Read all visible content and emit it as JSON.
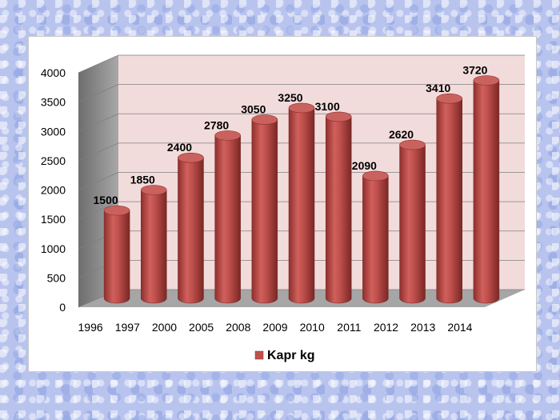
{
  "chart_data": {
    "type": "bar",
    "style": "3d-cylinder",
    "categories": [
      "1996",
      "1997",
      "2000",
      "2005",
      "2008",
      "2009",
      "2010",
      "2011",
      "2012",
      "2013",
      "2014"
    ],
    "series": [
      {
        "name": "Kapr kg",
        "values": [
          1500,
          1850,
          2400,
          2780,
          3050,
          3250,
          3100,
          2090,
          2620,
          3410,
          3720
        ],
        "color": "#c0504d"
      }
    ],
    "ylim": [
      0,
      4000
    ],
    "yticks": [
      "0",
      "500",
      "1000",
      "1500",
      "2000",
      "2500",
      "3000",
      "3500",
      "4000"
    ],
    "data_labels": true,
    "grid": true,
    "legend": "bottom",
    "colors": {
      "back_wall": "#f2dcdb",
      "side_wall": "#7f7f7f",
      "floor": "#a6a6a6"
    }
  }
}
